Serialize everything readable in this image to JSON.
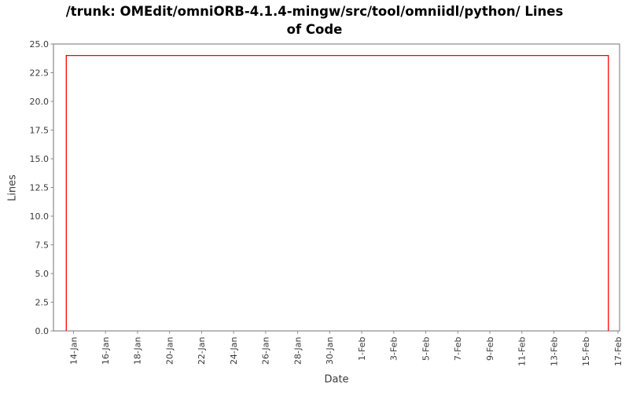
{
  "figure": {
    "title_line1": "/trunk: OMEdit/omniORB-4.1.4-mingw/src/tool/omniidl/python/ Lines",
    "title_line2": "of Code"
  },
  "chart_data": {
    "type": "line",
    "title": "/trunk: OMEdit/omniORB-4.1.4-mingw/src/tool/omniidl/python/ Lines of Code",
    "xlabel": "Date",
    "ylabel": "Lines",
    "ylim": [
      0,
      25
    ],
    "y_tick_step": 2.5,
    "y_tick_labels": [
      "0.0",
      "2.5",
      "5.0",
      "7.5",
      "10.0",
      "12.5",
      "15.0",
      "17.5",
      "20.0",
      "22.5",
      "25.0"
    ],
    "x_tick_labels": [
      "14-Jan",
      "16-Jan",
      "18-Jan",
      "20-Jan",
      "22-Jan",
      "24-Jan",
      "26-Jan",
      "28-Jan",
      "30-Jan",
      "1-Feb",
      "3-Feb",
      "5-Feb",
      "7-Feb",
      "9-Feb",
      "11-Feb",
      "13-Feb",
      "15-Feb",
      "17-Feb"
    ],
    "x_tick_day_offsets": [
      0,
      2,
      4,
      6,
      8,
      10,
      12,
      14,
      16,
      18,
      20,
      22,
      24,
      26,
      28,
      30,
      32,
      34
    ],
    "x_domain_days": [
      -1.25,
      34.1
    ],
    "grid": false,
    "legend": "none",
    "series": [
      {
        "name": "Lines of Code",
        "color": "#ff0000",
        "step": true,
        "value_plateau": 24,
        "points": [
          {
            "date": "13-Jan",
            "day": -0.45,
            "value": 0
          },
          {
            "date": "13-Jan",
            "day": -0.45,
            "value": 24
          },
          {
            "date": "16-Feb",
            "day": 33.4,
            "value": 24
          },
          {
            "date": "16-Feb",
            "day": 33.4,
            "value": 0
          }
        ]
      }
    ],
    "colors": {
      "line": "#ff0000",
      "spine": "#8a8a8a",
      "tick_label": "#3a3a3a",
      "title": "#000000",
      "background": "#ffffff"
    }
  }
}
